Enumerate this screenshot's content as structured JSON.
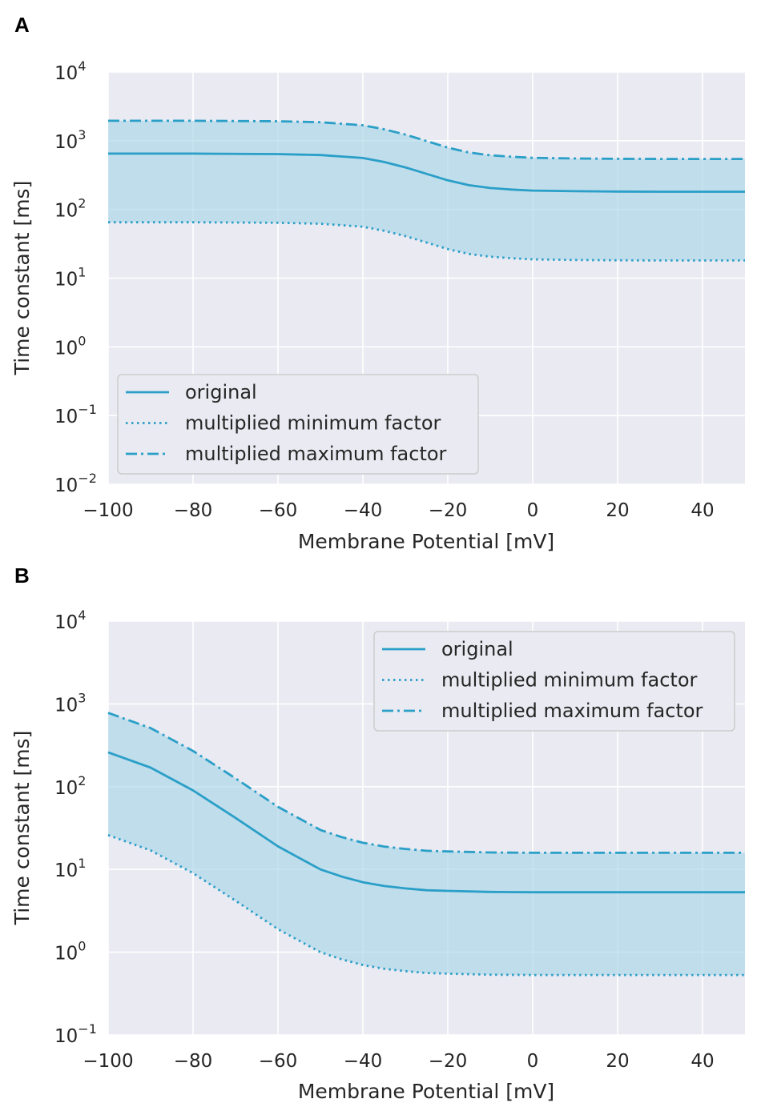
{
  "colors": {
    "line": "#2a9fc7",
    "fill": "#a9d6e8",
    "plot_bg": "#eaeaf2",
    "grid": "#ffffff",
    "text": "#262626"
  },
  "chart_data": [
    {
      "panel": "A",
      "type": "line",
      "xlabel": "Membrane Potential [mV]",
      "ylabel": "Time constant [ms]",
      "yscale": "log",
      "xlim": [
        -100,
        50
      ],
      "ylim_exp": [
        -2,
        4
      ],
      "x_ticks": [
        -100,
        -80,
        -60,
        -40,
        -20,
        0,
        20,
        40
      ],
      "x_tick_labels": [
        "−100",
        "−80",
        "−60",
        "−40",
        "−20",
        "0",
        "20",
        "40"
      ],
      "y_tick_exps": [
        -2,
        -1,
        0,
        1,
        2,
        3,
        4
      ],
      "y_tick_base": "10",
      "y_tick_sups": [
        "−2",
        "−1",
        "0",
        "1",
        "2",
        "3",
        "4"
      ],
      "legend_position": "lower-left",
      "x": [
        -100,
        -80,
        -60,
        -50,
        -40,
        -35,
        -30,
        -25,
        -20,
        -15,
        -10,
        -5,
        0,
        10,
        20,
        30,
        40,
        50
      ],
      "series": [
        {
          "name": "original",
          "style": "solid",
          "values": [
            650,
            650,
            640,
            620,
            560,
            490,
            410,
            330,
            265,
            225,
            205,
            195,
            188,
            184,
            182,
            181,
            181,
            181
          ]
        },
        {
          "name": "multiplied minimum factor",
          "style": "dotted",
          "values": [
            65,
            65,
            64,
            62,
            56,
            49,
            41,
            33,
            26.5,
            22.5,
            20.5,
            19.5,
            18.8,
            18.4,
            18.2,
            18.1,
            18.1,
            18.1
          ]
        },
        {
          "name": "multiplied maximum factor",
          "style": "dashdot",
          "values": [
            1950,
            1950,
            1920,
            1860,
            1680,
            1470,
            1230,
            990,
            795,
            675,
            615,
            585,
            564,
            552,
            546,
            543,
            543,
            543
          ]
        }
      ]
    },
    {
      "panel": "B",
      "type": "line",
      "xlabel": "Membrane Potential [mV]",
      "ylabel": "Time constant [ms]",
      "yscale": "log",
      "xlim": [
        -100,
        50
      ],
      "ylim_exp": [
        -1,
        4
      ],
      "x_ticks": [
        -100,
        -80,
        -60,
        -40,
        -20,
        0,
        20,
        40
      ],
      "x_tick_labels": [
        "−100",
        "−80",
        "−60",
        "−40",
        "−20",
        "0",
        "20",
        "40"
      ],
      "y_tick_exps": [
        -1,
        0,
        1,
        2,
        3,
        4
      ],
      "y_tick_base": "10",
      "y_tick_sups": [
        "−1",
        "0",
        "1",
        "2",
        "3",
        "4"
      ],
      "legend_position": "upper-right",
      "x": [
        -100,
        -90,
        -80,
        -70,
        -60,
        -50,
        -45,
        -40,
        -35,
        -30,
        -25,
        -20,
        -10,
        0,
        10,
        20,
        30,
        40,
        50
      ],
      "series": [
        {
          "name": "original",
          "style": "solid",
          "values": [
            260,
            170,
            90,
            42,
            19,
            10,
            8.2,
            7.0,
            6.3,
            5.9,
            5.6,
            5.5,
            5.35,
            5.3,
            5.3,
            5.3,
            5.3,
            5.3,
            5.3
          ]
        },
        {
          "name": "multiplied minimum factor",
          "style": "dotted",
          "values": [
            26,
            17,
            9,
            4.2,
            1.9,
            1.0,
            0.82,
            0.7,
            0.63,
            0.59,
            0.56,
            0.55,
            0.535,
            0.53,
            0.53,
            0.53,
            0.53,
            0.53,
            0.53
          ]
        },
        {
          "name": "multiplied maximum factor",
          "style": "dashdot",
          "values": [
            780,
            510,
            270,
            126,
            57,
            30,
            24.6,
            21,
            18.9,
            17.7,
            16.8,
            16.5,
            16.05,
            15.9,
            15.9,
            15.9,
            15.9,
            15.9,
            15.9
          ]
        }
      ]
    }
  ]
}
